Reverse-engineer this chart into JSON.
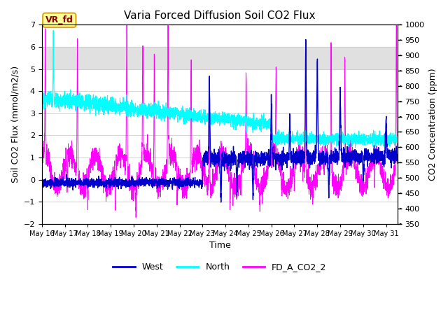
{
  "title": "Varia Forced Diffusion Soil CO2 Flux",
  "xlabel": "Time",
  "ylabel_left": "Soil CO2 Flux (mmol/m2/s)",
  "ylabel_right": "CO2 Concentration (ppm)",
  "xlim_days": [
    0,
    15.5
  ],
  "ylim_left": [
    -2.0,
    7.0
  ],
  "ylim_right": [
    350,
    1000
  ],
  "yticks_left": [
    -2.0,
    -1.0,
    0.0,
    1.0,
    2.0,
    3.0,
    4.0,
    5.0,
    6.0,
    7.0
  ],
  "yticks_right": [
    350,
    400,
    450,
    500,
    550,
    600,
    650,
    700,
    750,
    800,
    850,
    900,
    950,
    1000
  ],
  "xtick_labels": [
    "May 16",
    "May 17",
    "May 18",
    "May 19",
    "May 20",
    "May 21",
    "May 22",
    "May 23",
    "May 24",
    "May 25",
    "May 26",
    "May 27",
    "May 28",
    "May 29",
    "May 30",
    "May 31"
  ],
  "color_west": "#0000CD",
  "color_north": "#00FFFF",
  "color_co2": "#FF00FF",
  "shaded_ymin": 5.0,
  "shaded_ymax": 6.0,
  "shaded_color": "#e0e0e0",
  "vr_fd_label": "VR_fd",
  "vr_fd_bg": "#FFFF99",
  "vr_fd_text": "#8B0000",
  "vr_fd_border": "#DAA520",
  "legend_west": "West",
  "legend_north": "North",
  "legend_co2": "FD_A_CO2_2",
  "seed": 42
}
